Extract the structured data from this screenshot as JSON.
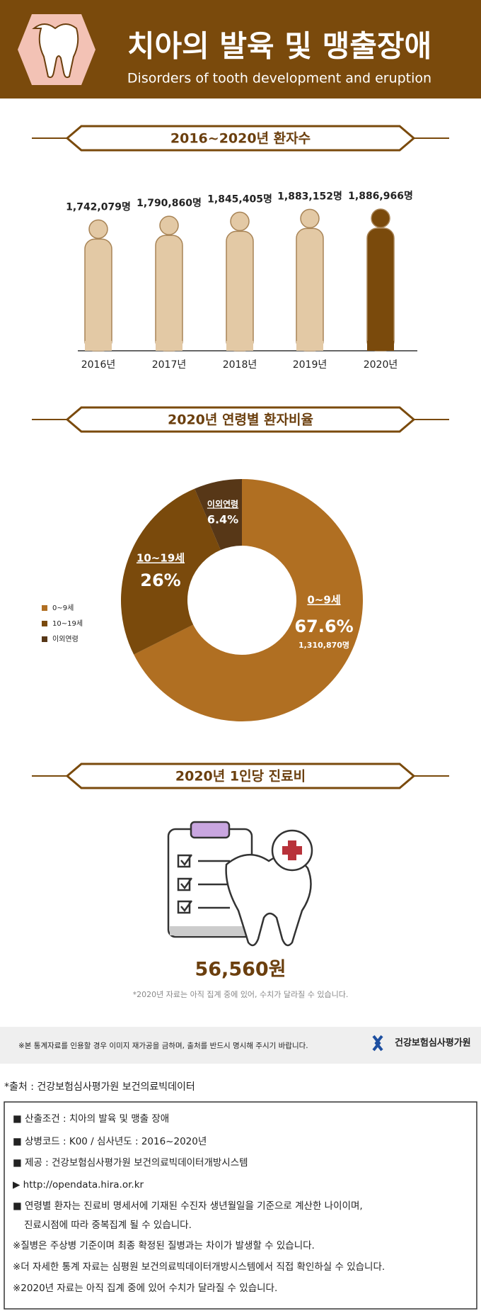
{
  "header": {
    "title": "치아의 발육 및 맹출장애",
    "subtitle": "Disorders of tooth development and eruption"
  },
  "chart_data": [
    {
      "type": "bar",
      "title": "2016~2020년 환자수",
      "categories": [
        "2016년",
        "2017년",
        "2018년",
        "2019년",
        "2020년"
      ],
      "values": [
        1742079,
        1790860,
        1845405,
        1883152,
        1886966
      ],
      "value_labels": [
        "1,742,079명",
        "1,790,860명",
        "1,845,405명",
        "1,883,152명",
        "1,886,966명"
      ],
      "colors": [
        "#e3c9a5",
        "#e3c9a5",
        "#e3c9a5",
        "#e3c9a5",
        "#7a4a0c"
      ]
    },
    {
      "type": "pie",
      "title": "2020년 연령별 환자비율",
      "categories": [
        "0~9세",
        "10~19세",
        "이외연령"
      ],
      "values": [
        67.6,
        26,
        6.4
      ],
      "value_labels": [
        "67.6%",
        "26%",
        "6.4%"
      ],
      "colors": [
        "#b06f22",
        "#7a4a0c",
        "#573717"
      ],
      "annotation": "1,310,870명",
      "legend": "left"
    }
  ],
  "cost": {
    "title": "2020년 1인당 진료비",
    "amount": "56,560원",
    "note": "*2020년 자료는 아직 집계 중에 있어, 수치가 달라질 수 있습니다."
  },
  "footer": {
    "notice": "※본 통계자료를 인용할 경우 이미지 재가공을 금하며, 출처를 반드시 명시해 주시기 바랍니다.",
    "logo": "건강보험심사평가원",
    "source": "*출처 : 건강보험심사평가원 보건의료빅데이터",
    "notes": [
      "■ 산출조건 : 치아의 발육 및 맹출 장애",
      "■ 상병코드 : K00 / 심사년도 : 2016~2020년",
      "■ 제공 : 건강보험심사평가원 보건의료빅데이터개방시스템",
      "▶ http://opendata.hira.or.kr",
      "■ 연령별 환자는 진료비 명세서에 기재된 수진자 생년월일을 기준으로 계산한 나이이며,",
      "진료시점에 따라 중복집계 될 수 있습니다.",
      "※질병은 주상병 기준이며 최종 확정된 질병과는 차이가 발생할 수 있습니다.",
      "※더 자세한 통계 자료는 심평원 보건의료빅데이터개방시스템에서 직접 확인하실 수 있습니다.",
      "※2020년 자료는 아직 집계 중에 있어 수치가 달라질 수 있습니다."
    ]
  }
}
